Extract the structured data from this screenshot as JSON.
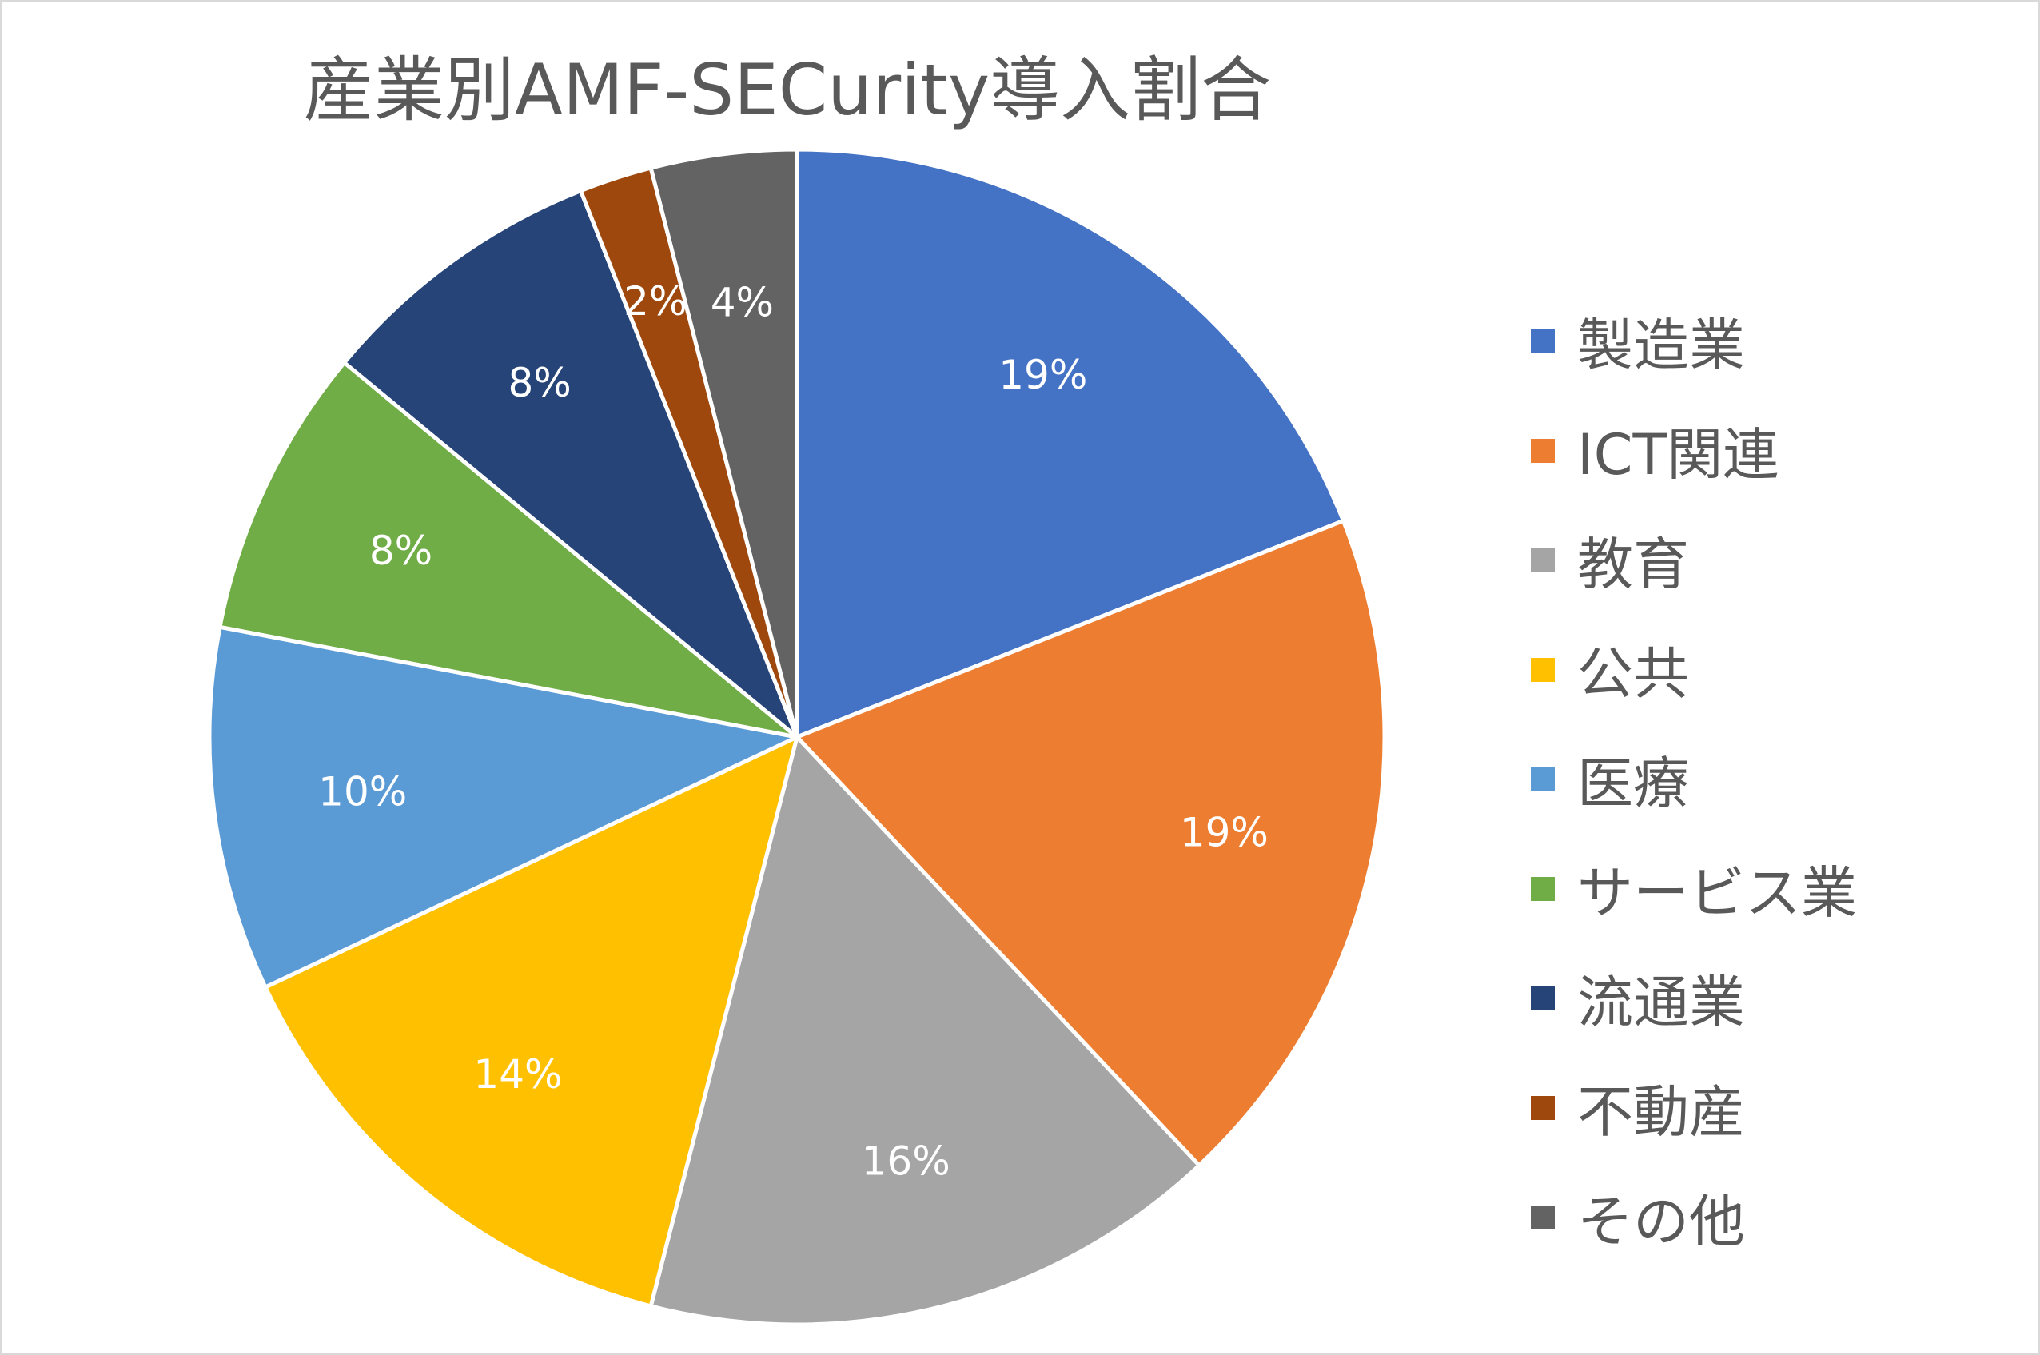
{
  "chart_data": {
    "type": "pie",
    "title": "産業別AMF-SECurity導入割合",
    "legend_position": "right",
    "slices": [
      {
        "label": "製造業",
        "value": 19,
        "value_label": "19%",
        "color": "#4472c4"
      },
      {
        "label": "ICT関連",
        "value": 19,
        "value_label": "19%",
        "color": "#ed7d31"
      },
      {
        "label": "教育",
        "value": 16,
        "value_label": "16%",
        "color": "#a5a5a5"
      },
      {
        "label": "公共",
        "value": 14,
        "value_label": "14%",
        "color": "#ffc000"
      },
      {
        "label": "医療",
        "value": 10,
        "value_label": "10%",
        "color": "#5b9bd5"
      },
      {
        "label": "サービス業",
        "value": 8,
        "value_label": "8%",
        "color": "#70ad47"
      },
      {
        "label": "流通業",
        "value": 8,
        "value_label": "8%",
        "color": "#264478"
      },
      {
        "label": "不動産",
        "value": 2,
        "value_label": "2%",
        "color": "#9e480e"
      },
      {
        "label": "その他",
        "value": 4,
        "value_label": "4%",
        "color": "#636363"
      }
    ]
  }
}
